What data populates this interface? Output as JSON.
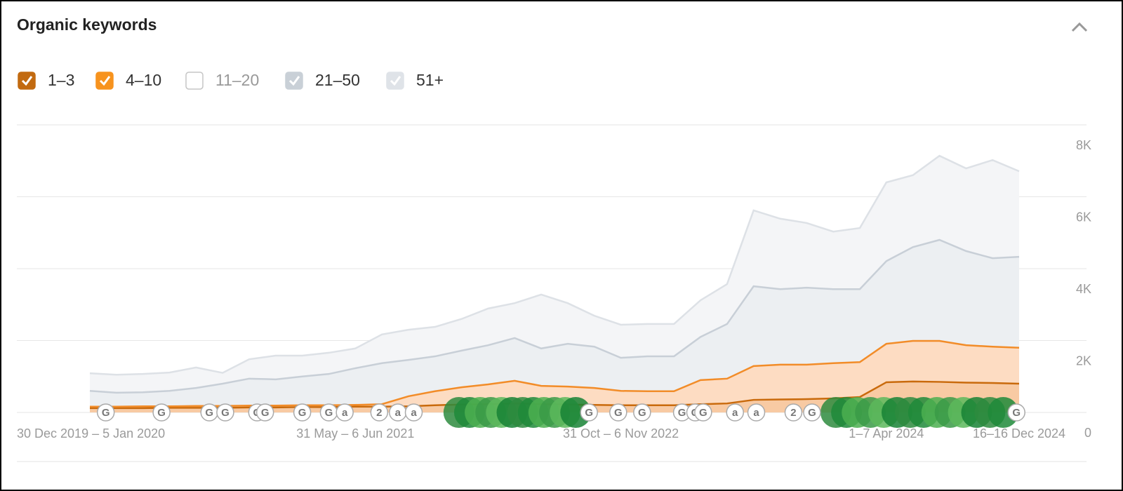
{
  "header": {
    "title": "Organic keywords"
  },
  "chart_data": {
    "type": "stacked_area",
    "categories": [
      "30 Dec 2019 – 5 Jan 2020",
      null,
      null,
      null,
      null,
      null,
      null,
      null,
      null,
      null,
      "31 May – 6 Jun 2021",
      null,
      null,
      null,
      null,
      null,
      null,
      null,
      null,
      null,
      "31 Oct – 6 Nov 2022",
      null,
      null,
      null,
      null,
      null,
      null,
      null,
      null,
      null,
      "1–7 Apr 2024",
      null,
      null,
      null,
      null,
      "16–16 Dec 2024"
    ],
    "series": [
      {
        "name": "1–3",
        "checked": true,
        "color": "#c96a0c",
        "fill": "#f8caa3",
        "box": "#c26a10",
        "values": [
          120,
          120,
          120,
          130,
          130,
          130,
          140,
          140,
          150,
          150,
          160,
          160,
          170,
          200,
          220,
          230,
          250,
          230,
          220,
          210,
          200,
          200,
          200,
          230,
          250,
          350,
          360,
          370,
          390,
          430,
          840,
          860,
          850,
          830,
          820,
          800
        ]
      },
      {
        "name": "4–10",
        "checked": true,
        "color": "#f28c28",
        "fill": "#fddcc2",
        "box": "#f7931e",
        "values": [
          40,
          40,
          50,
          40,
          50,
          50,
          50,
          50,
          50,
          50,
          50,
          70,
          280,
          390,
          480,
          550,
          630,
          510,
          500,
          470,
          400,
          390,
          390,
          670,
          690,
          940,
          970,
          960,
          980,
          970,
          1070,
          1130,
          1140,
          1040,
          1010,
          1000
        ]
      },
      {
        "name": "11–20",
        "checked": false,
        "color": "#c9d0d8",
        "box": "#ffffff"
      },
      {
        "name": "21–50",
        "checked": true,
        "color": "#c8cfd7",
        "fill": "#eceff2",
        "box": "#c9d0d7",
        "values": [
          440,
          390,
          390,
          430,
          500,
          620,
          750,
          730,
          800,
          870,
          1020,
          1140,
          1010,
          970,
          1020,
          1090,
          1190,
          1040,
          1190,
          1150,
          920,
          970,
          970,
          1200,
          1520,
          2220,
          2100,
          2140,
          2060,
          2030,
          2300,
          2610,
          2810,
          2620,
          2460,
          2530
        ]
      },
      {
        "name": "51+",
        "checked": true,
        "color": "#dde1e6",
        "fill": "#f4f5f7",
        "box": "#dfe3e8",
        "values": [
          490,
          500,
          510,
          510,
          570,
          300,
          540,
          660,
          580,
          590,
          550,
          800,
          840,
          820,
          880,
          1020,
          970,
          1500,
          1130,
          860,
          920,
          900,
          900,
          1020,
          1110,
          2110,
          1960,
          1800,
          1600,
          1700,
          2190,
          2000,
          2340,
          2300,
          2730,
          2380
        ]
      }
    ],
    "ylim": [
      0,
      8000
    ],
    "yticks": [
      0,
      {
        "value": 2000,
        "label": "2K"
      },
      {
        "value": 4000,
        "label": "4K"
      },
      {
        "value": 6000,
        "label": "6K"
      },
      {
        "value": 8000,
        "label": "8K"
      }
    ],
    "grid": true,
    "events": [
      {
        "x": 0.6,
        "label": "G"
      },
      {
        "x": 2.7,
        "label": "G"
      },
      {
        "x": 4.5,
        "label": "G"
      },
      {
        "x": 5.1,
        "label": "G"
      },
      {
        "x": 6.3,
        "label": "G"
      },
      {
        "x": 6.6,
        "label": "G"
      },
      {
        "x": 8.0,
        "label": "G"
      },
      {
        "x": 9.0,
        "label": "G"
      },
      {
        "x": 9.6,
        "label": "a"
      },
      {
        "x": 10.9,
        "label": "2"
      },
      {
        "x": 11.6,
        "label": "a"
      },
      {
        "x": 12.2,
        "label": "a"
      },
      {
        "x": 18.8,
        "label": "G"
      },
      {
        "x": 19.9,
        "label": "G"
      },
      {
        "x": 20.8,
        "label": "G"
      },
      {
        "x": 22.3,
        "label": "G"
      },
      {
        "x": 22.8,
        "label": "G"
      },
      {
        "x": 23.1,
        "label": "G"
      },
      {
        "x": 24.3,
        "label": "a"
      },
      {
        "x": 25.1,
        "label": "a"
      },
      {
        "x": 26.5,
        "label": "2"
      },
      {
        "x": 27.2,
        "label": "G"
      },
      {
        "x": 34.9,
        "label": "G"
      }
    ],
    "updates": [
      13.9,
      14.3,
      14.7,
      15.1,
      15.5,
      15.9,
      16.3,
      16.7,
      17.1,
      17.5,
      17.9,
      18.3,
      28.1,
      28.5,
      28.9,
      29.4,
      29.9,
      30.4,
      30.9,
      31.4,
      31.9,
      32.4,
      32.9,
      33.4,
      33.9,
      34.4
    ]
  }
}
